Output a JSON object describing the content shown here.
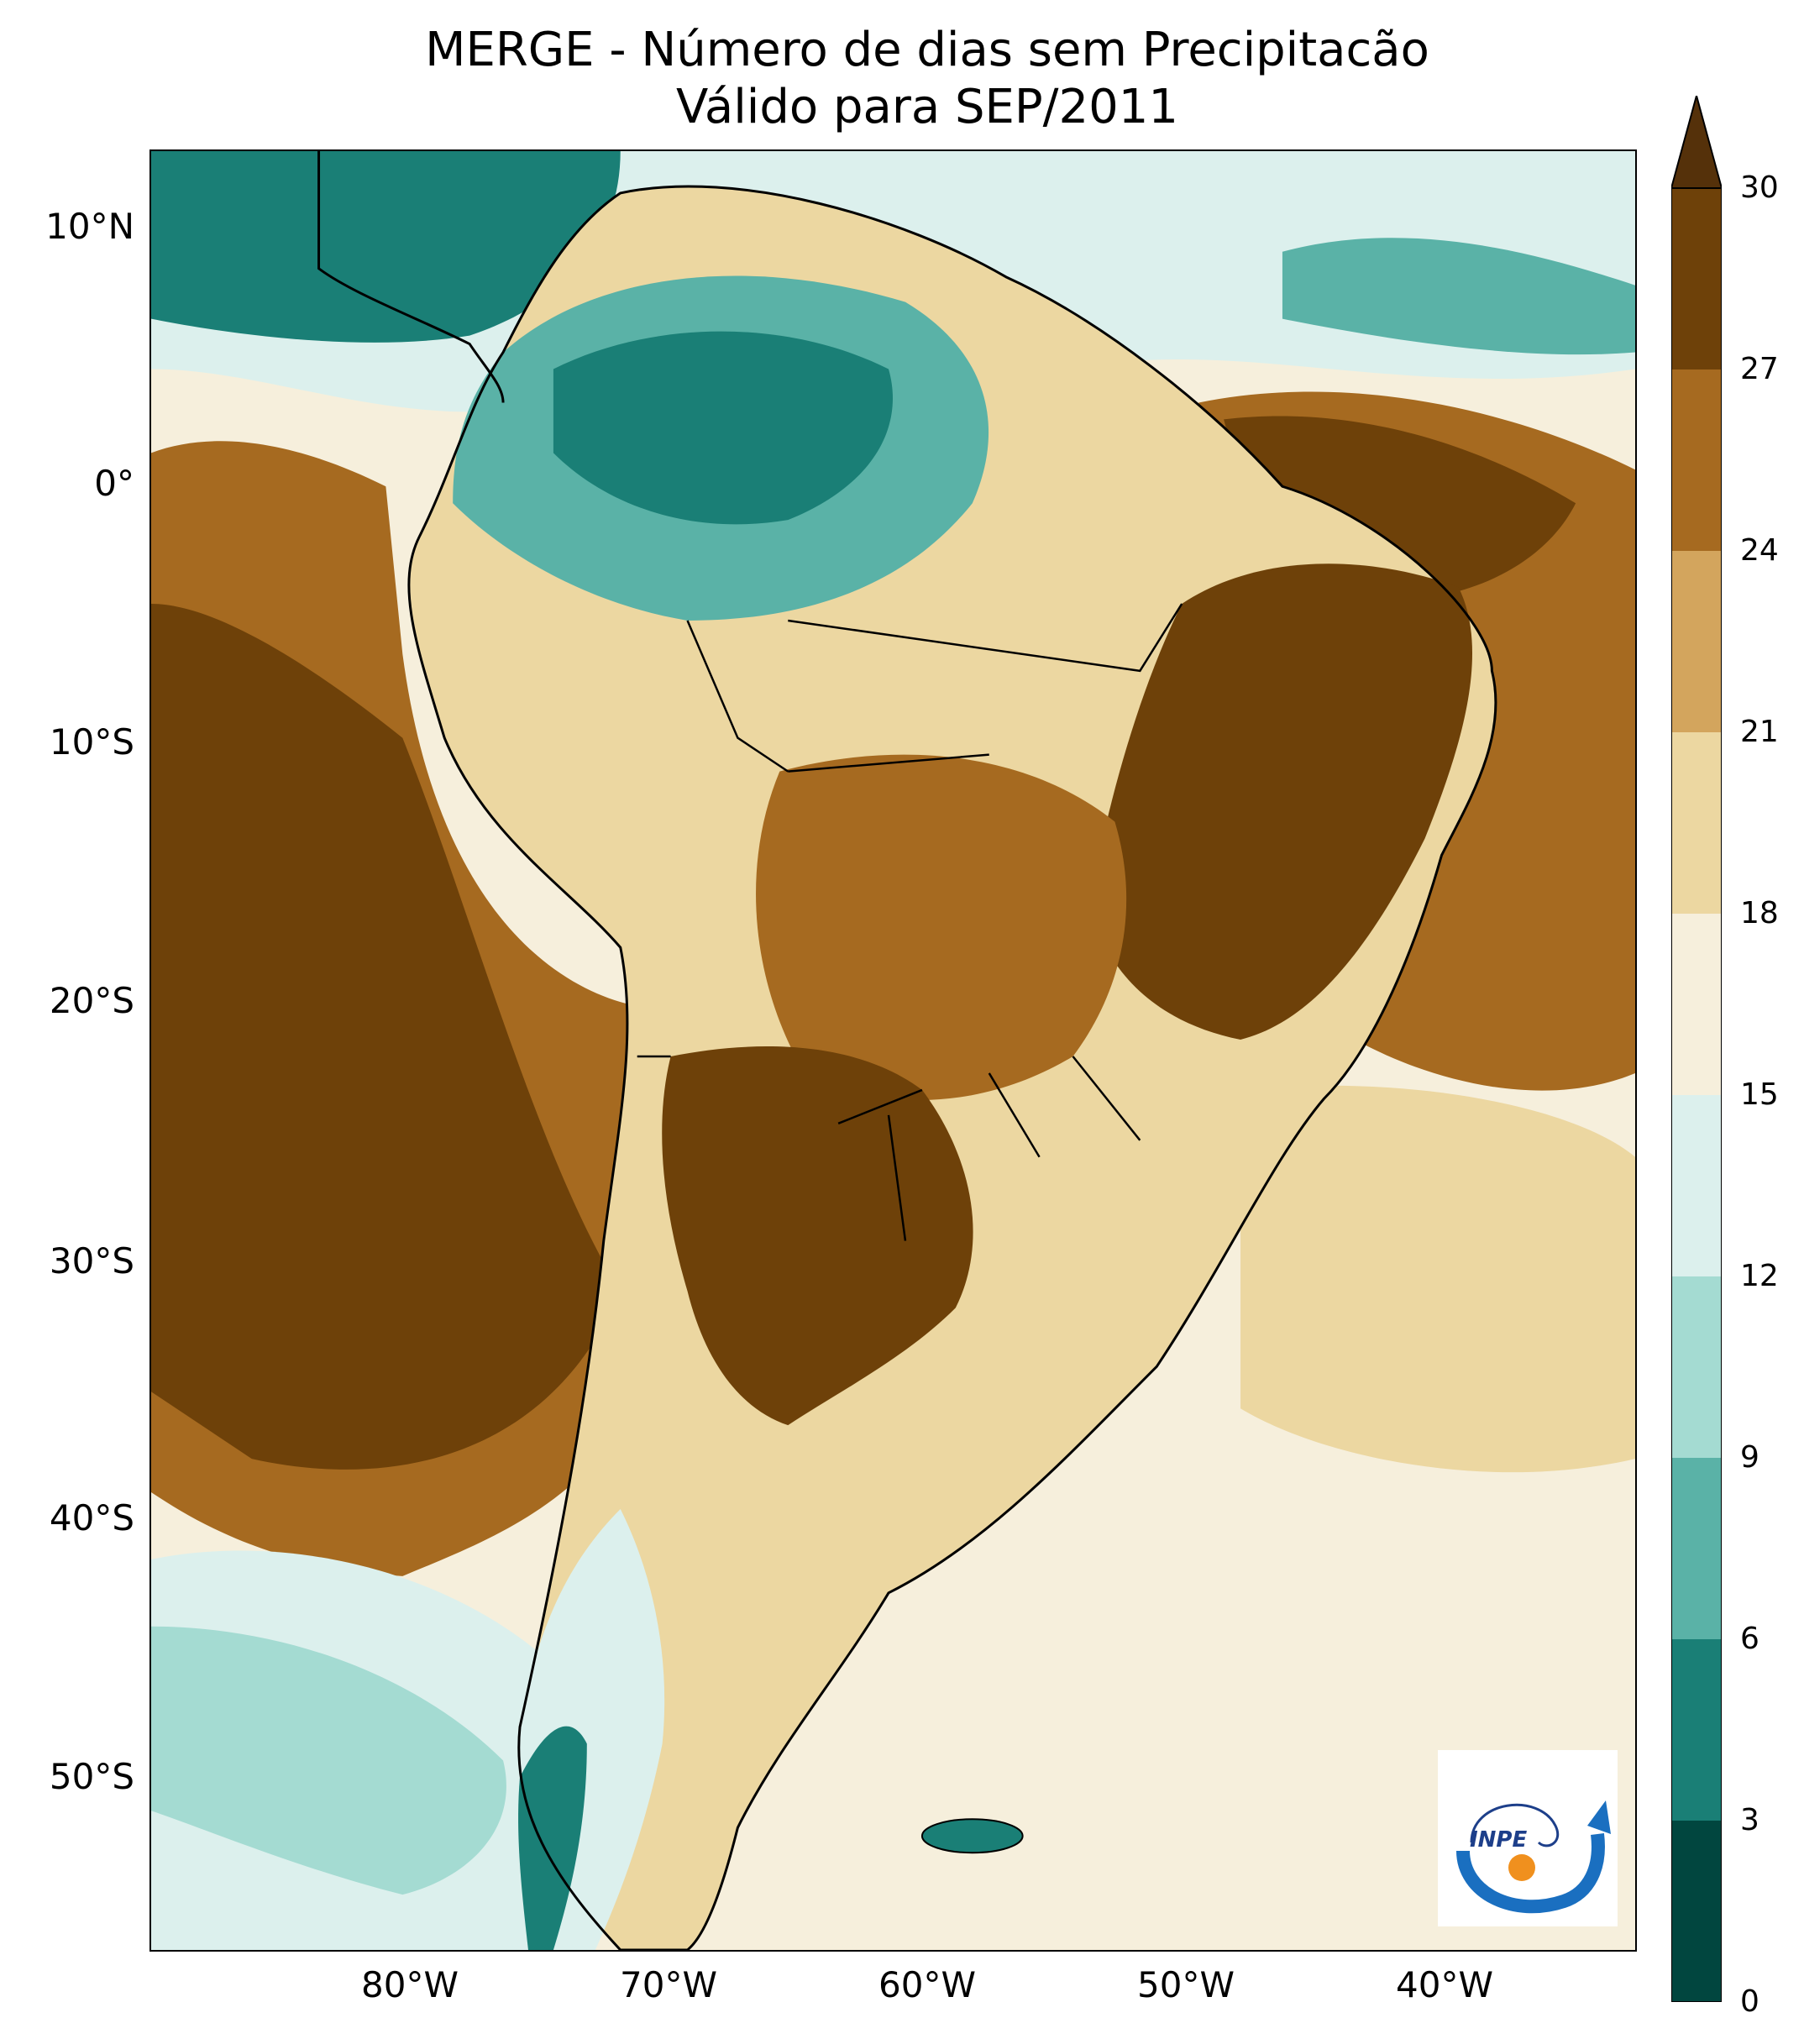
{
  "title": {
    "line1": "MERGE - Número de dias sem Precipitacão",
    "line2": "Válido para SEP/2011"
  },
  "axes": {
    "lat_ticks": [
      "10°N",
      "0°",
      "10°S",
      "20°S",
      "30°S",
      "40°S",
      "50°S"
    ],
    "lon_ticks": [
      "80°W",
      "70°W",
      "60°W",
      "50°W",
      "40°W"
    ],
    "lat_range": [
      -56,
      13
    ],
    "lon_range": [
      -90,
      -32
    ]
  },
  "colorbar": {
    "ticks": [
      "0",
      "3",
      "6",
      "9",
      "12",
      "15",
      "18",
      "21",
      "24",
      "27",
      "30"
    ],
    "extend": "max",
    "colors": [
      "#01463f",
      "#1a7f76",
      "#5ab2a7",
      "#a4dbd2",
      "#dcf0ed",
      "#f6efdc",
      "#ecd7a1",
      "#d3a55d",
      "#a66a20",
      "#6e4109",
      "#55310a"
    ]
  },
  "logo": {
    "text": "INPE"
  },
  "palette": {
    "ocean_base": "#f6efdc",
    "border": "#000000"
  }
}
